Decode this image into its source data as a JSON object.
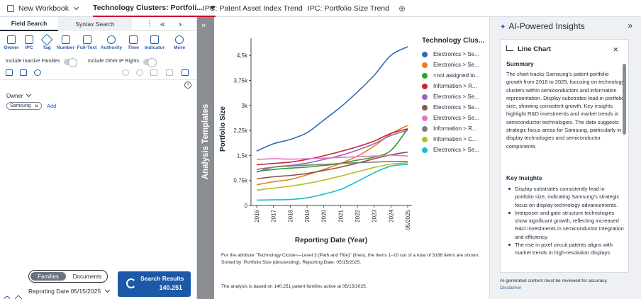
{
  "tabs": {
    "new_workbook": "New Workbook",
    "active": "Technology Clusters: Portfoli...",
    "tab2": "IPC: Patent Asset Index Trend",
    "tab3": "IPC: Portfolio Size Trend",
    "add": "⊕"
  },
  "left": {
    "field_search": "Field Search",
    "syntax_search": "Syntax Search",
    "tools": [
      "Owner",
      "IPC",
      "Tag",
      "Number",
      "Full-Text",
      "Authority",
      "Time",
      "Indicator",
      "More"
    ],
    "include_inactive": "Include Inactive Families",
    "include_other": "Include Other IP Rights",
    "owner_label": "Owner",
    "owner_chip": "Samsung",
    "add_link": "Add",
    "families": "Families",
    "documents": "Documents",
    "reporting_label": "Reporting Date",
    "reporting_date": "05/15/2025",
    "search_results_label": "Search Results",
    "search_results_count": "140.251"
  },
  "strip": {
    "label": "Analysis Templates"
  },
  "chart_data": {
    "type": "line",
    "title": "",
    "xlabel": "Reporting Date (Year)",
    "ylabel": "Portfolio Size",
    "x": [
      "2016",
      "2017",
      "2018",
      "2019",
      "2020",
      "2021",
      "2022",
      "2023",
      "2024",
      "05/2025"
    ],
    "yticks": [
      "0",
      "0,75k",
      "1,5k",
      "2,25k",
      "3k",
      "3,75k",
      "4,5k"
    ],
    "ylim": [
      0,
      4800
    ],
    "legend_title": "Technology Clus...",
    "series": [
      {
        "name": "Electronics > Se...",
        "color": "#2e6db3",
        "values": [
          1630,
          1850,
          1980,
          2180,
          2560,
          2950,
          3400,
          3900,
          4500,
          4760
        ]
      },
      {
        "name": "Electronics > Se...",
        "color": "#f07c1c",
        "values": [
          620,
          710,
          780,
          920,
          1080,
          1260,
          1480,
          1780,
          2150,
          2400
        ]
      },
      {
        "name": "<not assigned to...",
        "color": "#2ca02c",
        "values": [
          1020,
          1080,
          1120,
          1150,
          1200,
          1260,
          1360,
          1450,
          1650,
          2300
        ]
      },
      {
        "name": "Information > R...",
        "color": "#c8262c",
        "values": [
          1220,
          1260,
          1300,
          1380,
          1490,
          1620,
          1760,
          1930,
          2160,
          2300
        ]
      },
      {
        "name": "Electronics > Se...",
        "color": "#9467bd",
        "values": [
          1000,
          1150,
          1200,
          1270,
          1380,
          1500,
          1660,
          1850,
          2100,
          2250
        ]
      },
      {
        "name": "Electronics > Se...",
        "color": "#8c564b",
        "values": [
          800,
          860,
          900,
          960,
          1050,
          1150,
          1270,
          1400,
          1520,
          1600
        ]
      },
      {
        "name": "Electronics > Se...",
        "color": "#e377c2",
        "values": [
          1380,
          1400,
          1390,
          1400,
          1420,
          1440,
          1460,
          1480,
          1510,
          1480
        ]
      },
      {
        "name": "Information > R...",
        "color": "#7f7f7f",
        "values": [
          1080,
          1150,
          1180,
          1210,
          1230,
          1260,
          1280,
          1300,
          1320,
          1320
        ]
      },
      {
        "name": "Information > C...",
        "color": "#bcbd22",
        "values": [
          460,
          520,
          580,
          660,
          760,
          880,
          1010,
          1140,
          1240,
          1280
        ]
      },
      {
        "name": "Electronics > Se...",
        "color": "#17becf",
        "values": [
          160,
          170,
          180,
          230,
          340,
          480,
          720,
          980,
          1180,
          1230
        ]
      }
    ]
  },
  "notes": {
    "line1": "For the attribute \"Technology Cluster—Level 3 (Path and Title)\" (lines), the items 1–10 out of a total of 3186 items are shown. Sorted by: Portfolio Size (descending). Reporting Date: 05/15/2025.",
    "line2": "The analysis is based on 140.251 patent families active at 05/15/2025."
  },
  "insights": {
    "title": "AI-Powered Insights",
    "card_title": "Line Chart",
    "summary_heading": "Summary",
    "summary": "The chart tracks Samsung's patent portfolio growth from 2016 to 2025, focusing on technology clusters within semiconductors and information representation. Display substrates lead in portfolio size, showing consistent growth. Key insights highlight R&D investments and market trends in semiconductor technologies. The data suggests strategic focus areas for Samsung, particularly in display technologies and semiconductor components.",
    "key_heading": "Key Insights",
    "bullets": [
      "Display substrates consistently lead in portfolio size, indicating Samsung's strategic focus on display technology advancements.",
      "Interposer and gate structure technologies show significant growth, reflecting increased R&D investments in semiconductor integration and efficiency.",
      "The rise in pixel circuit patents aligns with market trends in high-resolution displays"
    ],
    "disclaimer": "AI-generated content must be reviewed for accuracy.",
    "disclaimer_link": "Disclaimer"
  }
}
